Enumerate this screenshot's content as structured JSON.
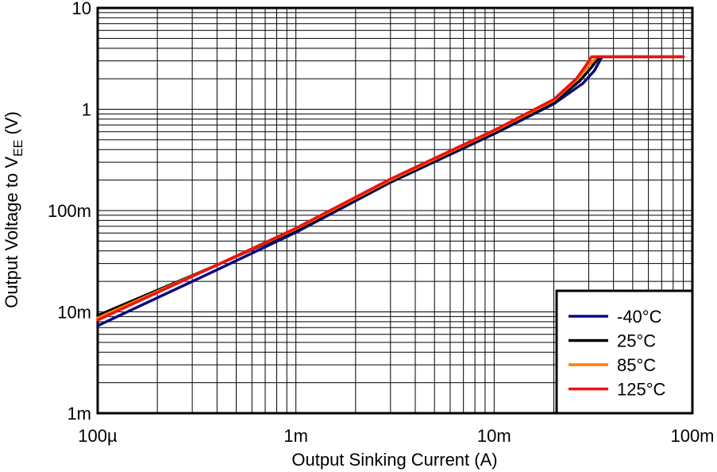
{
  "chart_data": {
    "type": "line",
    "xlabel": "Output Sinking Current (A)",
    "ylabel_main": "Output Voltage to V",
    "ylabel_sub": "EE",
    "ylabel_suffix": " (V)",
    "x_scale": "log",
    "y_scale": "log",
    "xlim": [
      0.0001,
      0.1
    ],
    "ylim": [
      0.001,
      10
    ],
    "x_ticks": [
      {
        "value": 0.0001,
        "label": "100µ"
      },
      {
        "value": 0.001,
        "label": "1m"
      },
      {
        "value": 0.01,
        "label": "10m"
      },
      {
        "value": 0.1,
        "label": "100m"
      }
    ],
    "y_ticks": [
      {
        "value": 0.001,
        "label": "1m"
      },
      {
        "value": 0.01,
        "label": "10m"
      },
      {
        "value": 0.1,
        "label": "100m"
      },
      {
        "value": 1,
        "label": "1"
      },
      {
        "value": 10,
        "label": "10"
      }
    ],
    "grid": true,
    "legend_position": "bottom-right",
    "series": [
      {
        "name": "-40°C",
        "color": "#0a0a80",
        "x": [
          0.0001,
          0.0004,
          0.001,
          0.003,
          0.01,
          0.02,
          0.028,
          0.032,
          0.035,
          0.09
        ],
        "y": [
          0.0073,
          0.026,
          0.061,
          0.19,
          0.57,
          1.13,
          1.8,
          2.4,
          3.3,
          3.3
        ]
      },
      {
        "name": "25°C",
        "color": "#000000",
        "x": [
          0.0001,
          0.0004,
          0.001,
          0.003,
          0.01,
          0.02,
          0.027,
          0.031,
          0.034,
          0.09
        ],
        "y": [
          0.0092,
          0.029,
          0.064,
          0.195,
          0.59,
          1.18,
          1.9,
          2.6,
          3.3,
          3.3
        ]
      },
      {
        "name": "85°C",
        "color": "#ff7f00",
        "x": [
          0.0001,
          0.0004,
          0.001,
          0.003,
          0.01,
          0.02,
          0.026,
          0.03,
          0.033,
          0.09
        ],
        "y": [
          0.0087,
          0.029,
          0.066,
          0.2,
          0.61,
          1.22,
          1.95,
          2.7,
          3.3,
          3.3
        ]
      },
      {
        "name": "125°C",
        "color": "#ee1111",
        "x": [
          0.0001,
          0.0004,
          0.001,
          0.003,
          0.01,
          0.02,
          0.026,
          0.029,
          0.031,
          0.09
        ],
        "y": [
          0.0083,
          0.029,
          0.067,
          0.205,
          0.62,
          1.25,
          2.0,
          2.7,
          3.3,
          3.3
        ]
      }
    ]
  }
}
